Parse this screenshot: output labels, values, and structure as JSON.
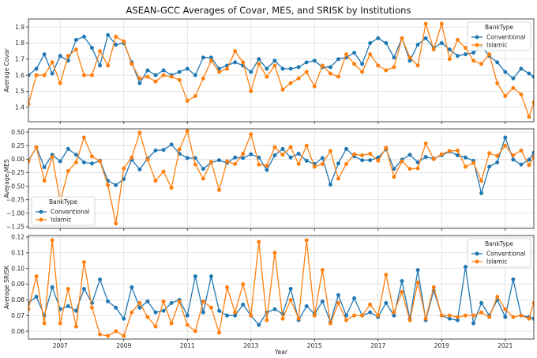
{
  "title": "ASEAN-GCC Averages of Covar, MES, and SRISK by Institutions",
  "colors": {
    "Conventional": "#1f77b4",
    "Islamic": "#ff7f0e"
  },
  "chart_data": [
    {
      "type": "line",
      "ylabel": "Average Covar",
      "xlabel": "",
      "xlim": [
        2006.0,
        2021.9
      ],
      "ylim": [
        1.31,
        1.95
      ],
      "yticks": [
        1.4,
        1.5,
        1.6,
        1.7,
        1.8,
        1.9
      ],
      "ytick_labels": [
        "1.4",
        "1.5",
        "1.6",
        "1.7",
        "1.8",
        "1.9"
      ],
      "xticks": [
        2007,
        2009,
        2011,
        2013,
        2015,
        2017,
        2019,
        2021
      ],
      "xtick_labels": [],
      "grid": true,
      "legend": {
        "title": "BankType",
        "position": "top-right",
        "entries": [
          "Conventional",
          "Islamic"
        ]
      },
      "x": [
        2006.0,
        2006.25,
        2006.5,
        2006.75,
        2007.0,
        2007.25,
        2007.5,
        2007.75,
        2008.0,
        2008.25,
        2008.5,
        2008.75,
        2009.0,
        2009.25,
        2009.5,
        2009.75,
        2010.0,
        2010.25,
        2010.5,
        2010.75,
        2011.0,
        2011.25,
        2011.5,
        2011.75,
        2012.0,
        2012.25,
        2012.5,
        2012.75,
        2013.0,
        2013.25,
        2013.5,
        2013.75,
        2014.0,
        2014.25,
        2014.5,
        2014.75,
        2015.0,
        2015.25,
        2015.5,
        2015.75,
        2016.0,
        2016.25,
        2016.5,
        2016.75,
        2017.0,
        2017.25,
        2017.5,
        2017.75,
        2018.0,
        2018.25,
        2018.5,
        2018.75,
        2019.0,
        2019.25,
        2019.5,
        2019.75,
        2020.0,
        2020.25,
        2020.5,
        2020.75,
        2021.0,
        2021.25,
        2021.5,
        2021.75,
        2021.9
      ],
      "series": [
        {
          "name": "Conventional",
          "values": [
            1.6,
            1.64,
            1.73,
            1.61,
            1.72,
            1.69,
            1.82,
            1.84,
            1.77,
            1.66,
            1.85,
            1.79,
            1.8,
            1.68,
            1.55,
            1.63,
            1.6,
            1.63,
            1.6,
            1.62,
            1.64,
            1.6,
            1.71,
            1.71,
            1.64,
            1.66,
            1.68,
            1.66,
            1.62,
            1.7,
            1.64,
            1.69,
            1.64,
            1.64,
            1.65,
            1.68,
            1.69,
            1.65,
            1.65,
            1.7,
            1.71,
            1.74,
            1.67,
            1.8,
            1.83,
            1.8,
            1.71,
            1.83,
            1.69,
            1.79,
            1.83,
            1.77,
            1.8,
            1.76,
            1.72,
            1.73,
            1.74,
            1.78,
            1.72,
            1.68,
            1.62,
            1.58,
            1.64,
            1.61,
            1.59
          ]
        },
        {
          "name": "Islamic",
          "values": [
            1.42,
            1.6,
            1.6,
            1.68,
            1.55,
            1.72,
            1.76,
            1.6,
            1.6,
            1.75,
            1.66,
            1.84,
            1.81,
            1.67,
            1.58,
            1.59,
            1.56,
            1.6,
            1.59,
            1.57,
            1.44,
            1.47,
            1.58,
            1.69,
            1.62,
            1.64,
            1.75,
            1.68,
            1.5,
            1.67,
            1.59,
            1.66,
            1.51,
            1.55,
            1.58,
            1.62,
            1.53,
            1.66,
            1.61,
            1.59,
            1.73,
            1.67,
            1.62,
            1.73,
            1.66,
            1.63,
            1.65,
            1.83,
            1.71,
            1.66,
            1.92,
            1.76,
            1.92,
            1.7,
            1.82,
            1.77,
            1.69,
            1.67,
            1.73,
            1.55,
            1.47,
            1.52,
            1.48,
            1.34,
            1.43
          ]
        }
      ]
    },
    {
      "type": "line",
      "ylabel": "Average MES",
      "xlabel": "",
      "xlim": [
        2006.0,
        2021.9
      ],
      "ylim": [
        -1.28,
        0.56
      ],
      "yticks": [
        -1.25,
        -1.0,
        -0.75,
        -0.5,
        -0.25,
        0.0,
        0.25,
        0.5
      ],
      "ytick_labels": [
        "−1.25",
        "−1.00",
        "−0.75",
        "−0.50",
        "−0.25",
        "0.00",
        "0.25",
        "0.50"
      ],
      "xticks": [
        2007,
        2009,
        2011,
        2013,
        2015,
        2017,
        2019,
        2021
      ],
      "xtick_labels": [],
      "grid": true,
      "legend": {
        "title": "BankType",
        "position": "bottom-left",
        "entries": [
          "Conventional",
          "Islamic"
        ]
      },
      "x": [
        2006.0,
        2006.25,
        2006.5,
        2006.75,
        2007.0,
        2007.25,
        2007.5,
        2007.75,
        2008.0,
        2008.25,
        2008.5,
        2008.75,
        2009.0,
        2009.25,
        2009.5,
        2009.75,
        2010.0,
        2010.25,
        2010.5,
        2010.75,
        2011.0,
        2011.25,
        2011.5,
        2011.75,
        2012.0,
        2012.25,
        2012.5,
        2012.75,
        2013.0,
        2013.25,
        2013.5,
        2013.75,
        2014.0,
        2014.25,
        2014.5,
        2014.75,
        2015.0,
        2015.25,
        2015.5,
        2015.75,
        2016.0,
        2016.25,
        2016.5,
        2016.75,
        2017.0,
        2017.25,
        2017.5,
        2017.75,
        2018.0,
        2018.25,
        2018.5,
        2018.75,
        2019.0,
        2019.25,
        2019.5,
        2019.75,
        2020.0,
        2020.25,
        2020.5,
        2020.75,
        2021.0,
        2021.25,
        2021.5,
        2021.75,
        2021.9
      ],
      "series": [
        {
          "name": "Conventional",
          "values": [
            -0.03,
            0.22,
            -0.15,
            0.08,
            -0.04,
            0.19,
            0.08,
            -0.06,
            -0.08,
            -0.03,
            -0.4,
            -0.48,
            -0.37,
            -0.01,
            -0.19,
            0.01,
            0.16,
            0.17,
            0.27,
            0.1,
            0.02,
            0.02,
            -0.18,
            -0.06,
            -0.02,
            -0.07,
            0.03,
            0.02,
            0.09,
            0.03,
            -0.2,
            0.07,
            0.19,
            0.03,
            0.1,
            -0.03,
            -0.09,
            0.02,
            -0.47,
            -0.08,
            0.19,
            0.05,
            -0.02,
            -0.02,
            0.03,
            0.18,
            -0.18,
            -0.01,
            0.08,
            -0.06,
            0.04,
            0.01,
            0.07,
            0.14,
            0.07,
            0.03,
            -0.03,
            -0.63,
            -0.14,
            -0.06,
            0.4,
            -0.01,
            -0.1,
            -0.01,
            0.12
          ]
        },
        {
          "name": "Islamic",
          "values": [
            -0.04,
            0.22,
            -0.4,
            0.04,
            -0.78,
            -0.22,
            -0.06,
            0.4,
            0.05,
            -0.04,
            -0.48,
            -1.19,
            -0.17,
            0.03,
            0.49,
            -0.01,
            -0.4,
            -0.23,
            -0.53,
            0.18,
            0.52,
            -0.1,
            -0.36,
            -0.05,
            -0.57,
            -0.04,
            -0.09,
            0.1,
            0.46,
            -0.1,
            -0.12,
            0.22,
            0.08,
            0.22,
            -0.09,
            0.25,
            -0.14,
            -0.09,
            0.15,
            -0.36,
            -0.09,
            0.09,
            0.07,
            0.1,
            -0.03,
            0.21,
            -0.33,
            -0.04,
            -0.18,
            -0.17,
            0.29,
            0.0,
            0.09,
            0.15,
            0.16,
            -0.14,
            -0.07,
            -0.4,
            0.11,
            0.06,
            0.25,
            0.07,
            0.16,
            -0.11,
            0.04
          ]
        }
      ]
    },
    {
      "type": "line",
      "ylabel": "Average SRISK",
      "xlabel": "Year",
      "xlim": [
        2006.0,
        2021.9
      ],
      "ylim": [
        0.055,
        0.121
      ],
      "yticks": [
        0.06,
        0.07,
        0.08,
        0.09,
        0.1,
        0.11,
        0.12
      ],
      "ytick_labels": [
        "0.06",
        "0.07",
        "0.08",
        "0.09",
        "0.10",
        "0.11",
        "0.12"
      ],
      "xticks": [
        2007,
        2009,
        2011,
        2013,
        2015,
        2017,
        2019,
        2021
      ],
      "xtick_labels": [
        "2007",
        "2009",
        "2011",
        "2013",
        "2015",
        "2017",
        "2019",
        "2021"
      ],
      "grid": true,
      "legend": {
        "title": "BankType",
        "position": "top-right",
        "entries": [
          "Conventional",
          "Islamic"
        ]
      },
      "x": [
        2006.0,
        2006.25,
        2006.5,
        2006.75,
        2007.0,
        2007.25,
        2007.5,
        2007.75,
        2008.0,
        2008.25,
        2008.5,
        2008.75,
        2009.0,
        2009.25,
        2009.5,
        2009.75,
        2010.0,
        2010.25,
        2010.5,
        2010.75,
        2011.0,
        2011.25,
        2011.5,
        2011.75,
        2012.0,
        2012.25,
        2012.5,
        2012.75,
        2013.0,
        2013.25,
        2013.5,
        2013.75,
        2014.0,
        2014.25,
        2014.5,
        2014.75,
        2015.0,
        2015.25,
        2015.5,
        2015.75,
        2016.0,
        2016.25,
        2016.5,
        2016.75,
        2017.0,
        2017.25,
        2017.5,
        2017.75,
        2018.0,
        2018.25,
        2018.5,
        2018.75,
        2019.0,
        2019.25,
        2019.5,
        2019.75,
        2020.0,
        2020.25,
        2020.5,
        2020.75,
        2021.0,
        2021.25,
        2021.5,
        2021.75,
        2021.9
      ],
      "series": [
        {
          "name": "Conventional",
          "values": [
            0.078,
            0.082,
            0.07,
            0.088,
            0.074,
            0.076,
            0.073,
            0.087,
            0.078,
            0.093,
            0.079,
            0.075,
            0.068,
            0.088,
            0.075,
            0.079,
            0.072,
            0.073,
            0.078,
            0.08,
            0.07,
            0.095,
            0.072,
            0.095,
            0.073,
            0.07,
            0.07,
            0.077,
            0.07,
            0.064,
            0.072,
            0.074,
            0.071,
            0.087,
            0.067,
            0.076,
            0.071,
            0.079,
            0.066,
            0.083,
            0.07,
            0.081,
            0.07,
            0.072,
            0.069,
            0.078,
            0.07,
            0.092,
            0.068,
            0.099,
            0.067,
            0.086,
            0.07,
            0.068,
            0.067,
            0.101,
            0.065,
            0.078,
            0.07,
            0.08,
            0.069,
            0.093,
            0.07,
            0.069,
            0.068
          ]
        },
        {
          "name": "Islamic",
          "values": [
            0.074,
            0.095,
            0.065,
            0.118,
            0.065,
            0.087,
            0.063,
            0.104,
            0.075,
            0.058,
            0.057,
            0.06,
            0.057,
            0.072,
            0.078,
            0.069,
            0.063,
            0.079,
            0.065,
            0.079,
            0.064,
            0.06,
            0.079,
            0.075,
            0.059,
            0.088,
            0.072,
            0.09,
            0.07,
            0.117,
            0.067,
            0.11,
            0.068,
            0.08,
            0.068,
            0.118,
            0.07,
            0.099,
            0.065,
            0.078,
            0.067,
            0.07,
            0.07,
            0.077,
            0.07,
            0.096,
            0.072,
            0.085,
            0.067,
            0.091,
            0.068,
            0.088,
            0.07,
            0.07,
            0.069,
            0.07,
            0.07,
            0.072,
            0.069,
            0.082,
            0.074,
            0.069,
            0.07,
            0.068,
            0.078
          ]
        }
      ]
    }
  ]
}
